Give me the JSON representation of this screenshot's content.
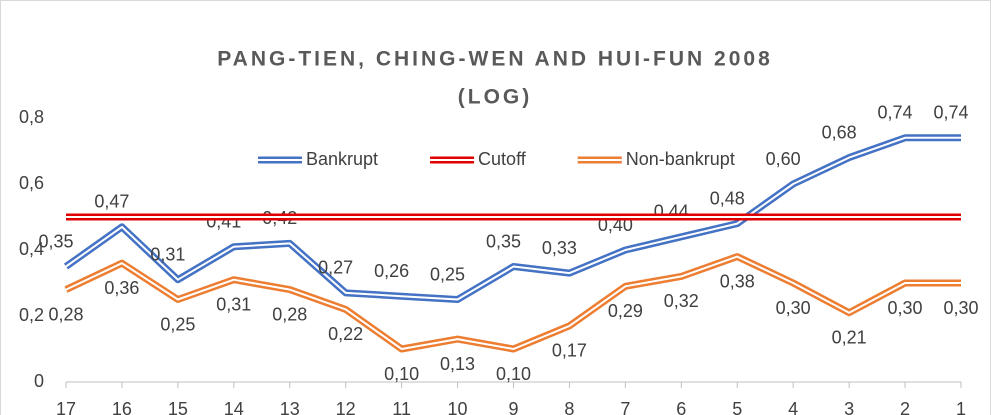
{
  "chart_data": {
    "type": "line",
    "title": "PANG-TIEN, CHING-WEN AND HUI-FUN 2008",
    "subtitle": "(LOG)",
    "categories": [
      "17",
      "16",
      "15",
      "14",
      "13",
      "12",
      "11",
      "10",
      "9",
      "8",
      "7",
      "6",
      "5",
      "4",
      "3",
      "2",
      "1"
    ],
    "series": [
      {
        "name": "Bankrupt",
        "color": "#4472c4",
        "values": [
          0.35,
          0.47,
          0.31,
          0.41,
          0.42,
          0.27,
          0.26,
          0.25,
          0.35,
          0.33,
          0.4,
          0.44,
          0.48,
          0.6,
          0.68,
          0.74,
          0.74
        ],
        "value_labels": [
          "0,35",
          "0,47",
          "0,31",
          "0,41",
          "0,42",
          "0,27",
          "0,26",
          "0,25",
          "0,35",
          "0,33",
          "0,40",
          "0,44",
          "0,48",
          "0,60",
          "0,68",
          "0,74",
          "0,74"
        ]
      },
      {
        "name": "Cutoff",
        "color": "#e00000",
        "values": [
          0.5,
          0.5,
          0.5,
          0.5,
          0.5,
          0.5,
          0.5,
          0.5,
          0.5,
          0.5,
          0.5,
          0.5,
          0.5,
          0.5,
          0.5,
          0.5,
          0.5
        ]
      },
      {
        "name": "Non-bankrupt",
        "color": "#ed7d31",
        "values": [
          0.28,
          0.36,
          0.25,
          0.31,
          0.28,
          0.22,
          0.1,
          0.13,
          0.1,
          0.17,
          0.29,
          0.32,
          0.38,
          0.3,
          0.21,
          0.3,
          0.3
        ],
        "value_labels": [
          "0,28",
          "0,36",
          "0,25",
          "0,31",
          "0,28",
          "0,22",
          "0,10",
          "0,13",
          "0,10",
          "0,17",
          "0,29",
          "0,32",
          "0,38",
          "0,30",
          "0,21",
          "0,30",
          "0,30"
        ]
      }
    ],
    "ylim": [
      0,
      0.8
    ],
    "yticks": [
      0,
      {
        "value": 0.2,
        "label": "0,2"
      },
      {
        "value": 0.4,
        "label": "0,4"
      },
      {
        "value": 0.6,
        "label": "0,6"
      },
      {
        "value": 0.8,
        "label": "0,8"
      }
    ],
    "grid": false,
    "legend": "top"
  }
}
